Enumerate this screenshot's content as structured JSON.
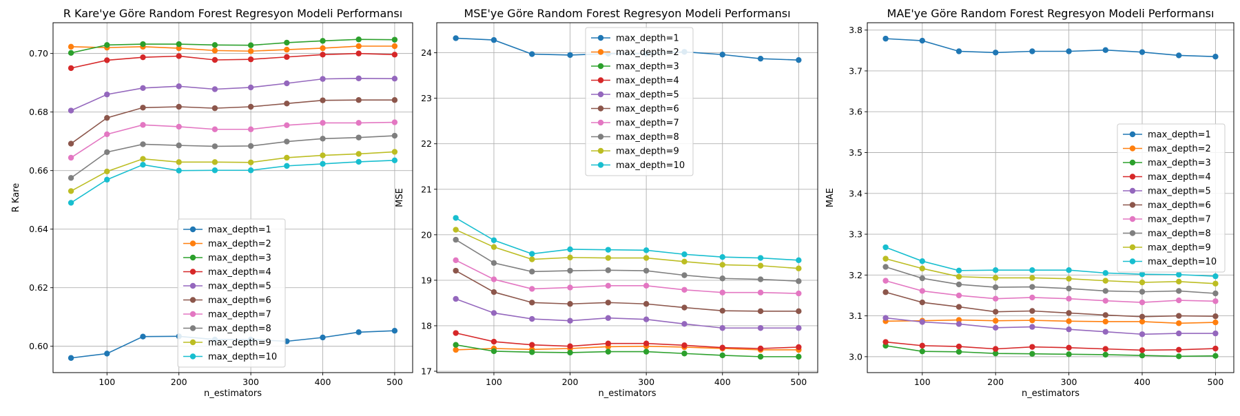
{
  "chart_data": [
    {
      "type": "line",
      "title": "R Kare'ye Göre Random Forest Regresyon Modeli Performansı",
      "xlabel": "n_estimators",
      "ylabel": "R Kare",
      "x": [
        50,
        100,
        150,
        200,
        250,
        300,
        350,
        400,
        450,
        500
      ],
      "xlim": [
        25,
        525
      ],
      "ylim": [
        0.591,
        0.7105
      ],
      "xticks": [
        100,
        200,
        300,
        400,
        500
      ],
      "yticks": [
        0.6,
        0.62,
        0.64,
        0.66,
        0.68,
        0.7
      ],
      "ytick_labels": [
        "0.60",
        "0.62",
        "0.64",
        "0.66",
        "0.68",
        "0.70"
      ],
      "grid": true,
      "legend_position": "lower-center",
      "series": [
        {
          "name": "max_depth=1",
          "values": [
            0.596,
            0.5975,
            0.6033,
            0.6034,
            0.6023,
            0.6023,
            0.6017,
            0.603,
            0.6048,
            0.6053
          ]
        },
        {
          "name": "max_depth=2",
          "values": [
            0.7023,
            0.702,
            0.7023,
            0.7018,
            0.701,
            0.7008,
            0.7013,
            0.7018,
            0.7025,
            0.7025
          ]
        },
        {
          "name": "max_depth=3",
          "values": [
            0.7002,
            0.7029,
            0.7032,
            0.7032,
            0.7029,
            0.7028,
            0.7037,
            0.7043,
            0.7048,
            0.7047
          ]
        },
        {
          "name": "max_depth=4",
          "values": [
            0.695,
            0.6977,
            0.6987,
            0.6991,
            0.6978,
            0.698,
            0.6988,
            0.6996,
            0.7,
            0.6996
          ]
        },
        {
          "name": "max_depth=5",
          "values": [
            0.6805,
            0.686,
            0.6882,
            0.6888,
            0.6878,
            0.6884,
            0.6898,
            0.6913,
            0.6915,
            0.6914
          ]
        },
        {
          "name": "max_depth=6",
          "values": [
            0.6692,
            0.678,
            0.6815,
            0.6818,
            0.6813,
            0.6818,
            0.6829,
            0.684,
            0.6841,
            0.6841
          ]
        },
        {
          "name": "max_depth=7",
          "values": [
            0.6644,
            0.6724,
            0.6756,
            0.675,
            0.6741,
            0.6741,
            0.6755,
            0.6763,
            0.6763,
            0.6765
          ]
        },
        {
          "name": "max_depth=8",
          "values": [
            0.6575,
            0.6663,
            0.669,
            0.6686,
            0.6683,
            0.6684,
            0.6699,
            0.6709,
            0.6713,
            0.6719
          ]
        },
        {
          "name": "max_depth=9",
          "values": [
            0.653,
            0.6597,
            0.664,
            0.6629,
            0.6629,
            0.6628,
            0.6644,
            0.6652,
            0.6657,
            0.6664
          ]
        },
        {
          "name": "max_depth=10",
          "values": [
            0.649,
            0.6569,
            0.662,
            0.66,
            0.6601,
            0.6601,
            0.6616,
            0.6623,
            0.663,
            0.6635
          ]
        }
      ]
    },
    {
      "type": "line",
      "title": "MSE'ye Göre Random Forest Regresyon Modeli Performansı",
      "xlabel": "n_estimators",
      "ylabel": "MSE",
      "x": [
        50,
        100,
        150,
        200,
        250,
        300,
        350,
        400,
        450,
        500
      ],
      "xlim": [
        25,
        525
      ],
      "ylim": [
        16.97,
        24.66
      ],
      "xticks": [
        100,
        200,
        300,
        400,
        500
      ],
      "yticks": [
        17,
        18,
        19,
        20,
        21,
        22,
        23,
        24
      ],
      "ytick_labels": [
        "17",
        "18",
        "19",
        "20",
        "21",
        "22",
        "23",
        "24"
      ],
      "grid": true,
      "legend_position": "upper-center",
      "series": [
        {
          "name": "max_depth=1",
          "values": [
            24.32,
            24.28,
            23.97,
            23.95,
            23.98,
            23.98,
            24.02,
            23.96,
            23.87,
            23.84
          ]
        },
        {
          "name": "max_depth=2",
          "values": [
            17.47,
            17.5,
            17.48,
            17.5,
            17.54,
            17.55,
            17.53,
            17.5,
            17.47,
            17.47
          ]
        },
        {
          "name": "max_depth=3",
          "values": [
            17.58,
            17.44,
            17.42,
            17.41,
            17.43,
            17.43,
            17.39,
            17.35,
            17.32,
            17.32
          ]
        },
        {
          "name": "max_depth=4",
          "values": [
            17.84,
            17.65,
            17.58,
            17.55,
            17.61,
            17.61,
            17.57,
            17.52,
            17.5,
            17.53
          ]
        },
        {
          "name": "max_depth=5",
          "values": [
            18.59,
            18.28,
            18.15,
            18.11,
            18.17,
            18.14,
            18.04,
            17.95,
            17.95,
            17.95
          ]
        },
        {
          "name": "max_depth=6",
          "values": [
            19.21,
            18.74,
            18.51,
            18.48,
            18.51,
            18.48,
            18.4,
            18.33,
            18.32,
            18.32
          ]
        },
        {
          "name": "max_depth=7",
          "values": [
            19.44,
            19.02,
            18.81,
            18.84,
            18.88,
            18.88,
            18.79,
            18.73,
            18.73,
            18.71
          ]
        },
        {
          "name": "max_depth=8",
          "values": [
            19.89,
            19.38,
            19.19,
            19.21,
            19.22,
            19.21,
            19.11,
            19.04,
            19.02,
            18.98
          ]
        },
        {
          "name": "max_depth=9",
          "values": [
            20.11,
            19.73,
            19.46,
            19.5,
            19.49,
            19.49,
            19.41,
            19.34,
            19.32,
            19.26
          ]
        },
        {
          "name": "max_depth=10",
          "values": [
            20.37,
            19.88,
            19.58,
            19.68,
            19.67,
            19.66,
            19.57,
            19.51,
            19.49,
            19.44
          ]
        }
      ]
    },
    {
      "type": "line",
      "title": "MAE'ye Göre Random Forest Regresyon Modeli Performansı",
      "xlabel": "n_estimators",
      "ylabel": "MAE",
      "x": [
        50,
        100,
        150,
        200,
        250,
        300,
        350,
        400,
        450,
        500
      ],
      "xlim": [
        25,
        525
      ],
      "ylim": [
        2.961,
        3.818
      ],
      "xticks": [
        100,
        200,
        300,
        400,
        500
      ],
      "yticks": [
        3.0,
        3.1,
        3.2,
        3.3,
        3.4,
        3.5,
        3.6,
        3.7,
        3.8
      ],
      "ytick_labels": [
        "3.0",
        "3.1",
        "3.2",
        "3.3",
        "3.4",
        "3.5",
        "3.6",
        "3.7",
        "3.8"
      ],
      "grid": true,
      "legend_position": "center-right",
      "series": [
        {
          "name": "max_depth=1",
          "values": [
            3.779,
            3.774,
            3.748,
            3.745,
            3.748,
            3.748,
            3.751,
            3.746,
            3.738,
            3.735
          ]
        },
        {
          "name": "max_depth=2",
          "values": [
            3.087,
            3.088,
            3.09,
            3.088,
            3.089,
            3.087,
            3.086,
            3.086,
            3.082,
            3.084
          ]
        },
        {
          "name": "max_depth=3",
          "values": [
            3.027,
            3.013,
            3.012,
            3.008,
            3.007,
            3.006,
            3.005,
            3.003,
            3.001,
            3.002
          ]
        },
        {
          "name": "max_depth=4",
          "values": [
            3.036,
            3.027,
            3.025,
            3.019,
            3.024,
            3.022,
            3.019,
            3.016,
            3.017,
            3.02
          ]
        },
        {
          "name": "max_depth=5",
          "values": [
            3.095,
            3.085,
            3.08,
            3.071,
            3.073,
            3.067,
            3.061,
            3.055,
            3.057,
            3.057
          ]
        },
        {
          "name": "max_depth=6",
          "values": [
            3.158,
            3.133,
            3.122,
            3.11,
            3.112,
            3.107,
            3.102,
            3.098,
            3.1,
            3.099
          ]
        },
        {
          "name": "max_depth=7",
          "values": [
            3.186,
            3.161,
            3.15,
            3.142,
            3.145,
            3.142,
            3.137,
            3.133,
            3.138,
            3.136
          ]
        },
        {
          "name": "max_depth=8",
          "values": [
            3.22,
            3.192,
            3.177,
            3.17,
            3.171,
            3.167,
            3.161,
            3.159,
            3.161,
            3.155
          ]
        },
        {
          "name": "max_depth=9",
          "values": [
            3.24,
            3.216,
            3.196,
            3.193,
            3.193,
            3.191,
            3.186,
            3.182,
            3.184,
            3.179
          ]
        },
        {
          "name": "max_depth=10",
          "values": [
            3.268,
            3.234,
            3.211,
            3.212,
            3.212,
            3.212,
            3.205,
            3.202,
            3.201,
            3.197
          ]
        }
      ]
    }
  ],
  "colors": [
    "#1f77b4",
    "#ff7f0e",
    "#2ca02c",
    "#d62728",
    "#9467bd",
    "#8c564b",
    "#e377c2",
    "#7f7f7f",
    "#bcbd22",
    "#17becf"
  ]
}
